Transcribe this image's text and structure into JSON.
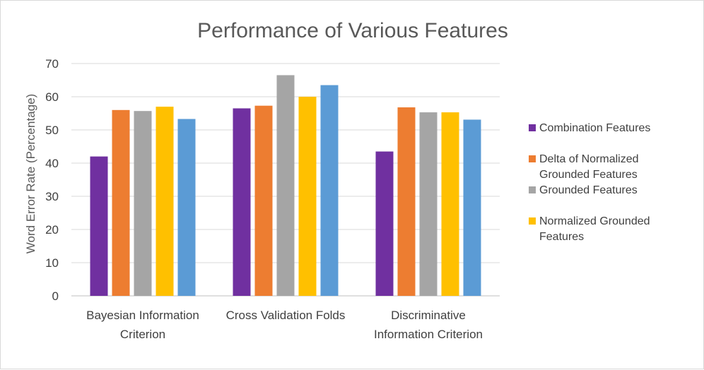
{
  "chart_data": {
    "type": "bar",
    "title": "Performance of Various Features",
    "ylabel": "Word Error Rate (Percentage)",
    "xlabel": "",
    "ylim": [
      0,
      70
    ],
    "yticks": [
      0,
      10,
      20,
      30,
      40,
      50,
      60,
      70
    ],
    "grid": true,
    "legend_position": "right",
    "categories": [
      [
        "Bayesian Information",
        "Criterion"
      ],
      [
        "Cross Validation Folds"
      ],
      [
        "Discriminative",
        "Information Criterion"
      ]
    ],
    "series": [
      {
        "name": "Combination Features",
        "legend_lines": [
          "Combination Features"
        ],
        "color": "#7030a0",
        "values": [
          42,
          56.5,
          43.5
        ]
      },
      {
        "name": "Delta of Normalized Grounded Features",
        "legend_lines": [
          "Delta of Normalized",
          "Grounded Features"
        ],
        "color": "#ed7d31",
        "values": [
          56,
          57.3,
          56.8
        ]
      },
      {
        "name": "Grounded Features",
        "legend_lines": [
          "Grounded Features"
        ],
        "color": "#a5a5a5",
        "values": [
          55.7,
          66.5,
          55.3
        ]
      },
      {
        "name": "Normalized Grounded Features",
        "legend_lines": [
          "Normalized Grounded",
          "Features"
        ],
        "color": "#ffc000",
        "values": [
          57,
          60,
          55.3
        ]
      },
      {
        "name": "",
        "legend_lines": [],
        "color": "#5b9bd5",
        "values": [
          53.3,
          63.5,
          53.1
        ]
      }
    ]
  }
}
